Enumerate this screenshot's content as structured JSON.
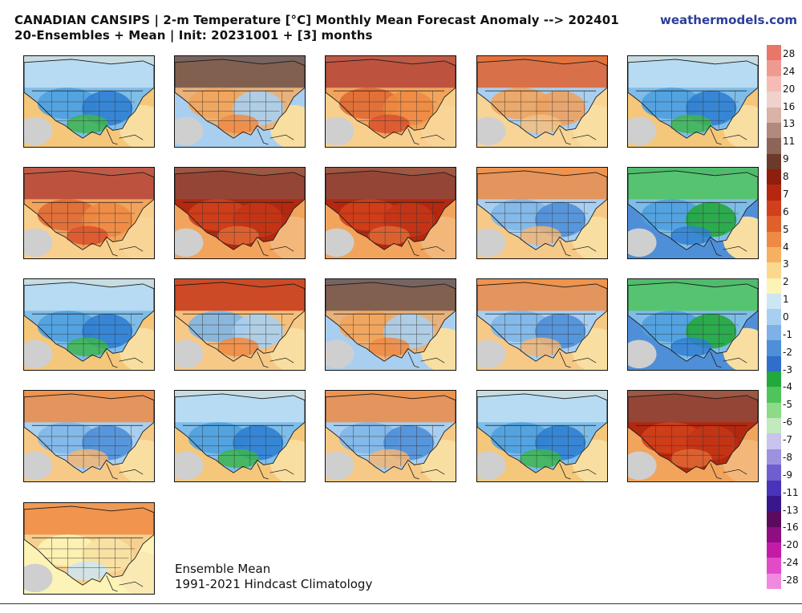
{
  "header": {
    "title_line1": "CANADIAN CANSIPS | 2-m Temperature [°C] Monthly Mean Forecast Anomaly --> 202401",
    "title_line2": "20-Ensembles + Mean | Init: 20231001 + [3] months",
    "brand": "weathermodels.com"
  },
  "footnote": {
    "line1": "Ensemble Mean",
    "line2": "1991-2021 Hindcast Climatology"
  },
  "panels": [
    {
      "id": "member-1",
      "anomaly": "cold"
    },
    {
      "id": "member-2",
      "anomaly": "warm-east"
    },
    {
      "id": "member-3",
      "anomaly": "warm"
    },
    {
      "id": "member-4",
      "anomaly": "mild-warm"
    },
    {
      "id": "member-5",
      "anomaly": "cold"
    },
    {
      "id": "member-6",
      "anomaly": "warm"
    },
    {
      "id": "member-7",
      "anomaly": "very-warm"
    },
    {
      "id": "member-8",
      "anomaly": "very-warm"
    },
    {
      "id": "member-9",
      "anomaly": "cool"
    },
    {
      "id": "member-10",
      "anomaly": "cold-east"
    },
    {
      "id": "member-11",
      "anomaly": "cold"
    },
    {
      "id": "member-12",
      "anomaly": "warm-north"
    },
    {
      "id": "member-13",
      "anomaly": "warm-east"
    },
    {
      "id": "member-14",
      "anomaly": "cool"
    },
    {
      "id": "member-15",
      "anomaly": "cold-east"
    },
    {
      "id": "member-16",
      "anomaly": "cool"
    },
    {
      "id": "member-17",
      "anomaly": "cold"
    },
    {
      "id": "member-18",
      "anomaly": "cool"
    },
    {
      "id": "member-19",
      "anomaly": "cold"
    },
    {
      "id": "member-20",
      "anomaly": "very-warm"
    },
    {
      "id": "ensemble-mean",
      "anomaly": "neutral"
    }
  ],
  "colorbar": {
    "labels": [
      "28",
      "24",
      "20",
      "16",
      "13",
      "11",
      "9",
      "8",
      "7",
      "6",
      "5",
      "4",
      "3",
      "2",
      "1",
      "0",
      "-1",
      "-2",
      "-3",
      "-4",
      "-5",
      "-6",
      "-7",
      "-8",
      "-9",
      "-11",
      "-13",
      "-16",
      "-20",
      "-24",
      "-28"
    ],
    "colors": [
      "#e8776a",
      "#ef9a90",
      "#f4bcb4",
      "#efd2cc",
      "#d9b3a6",
      "#b08a7c",
      "#8c6558",
      "#6b3a2a",
      "#8e1e0e",
      "#b4280f",
      "#d13f1b",
      "#e0602b",
      "#ee8a43",
      "#f6b062",
      "#fbd88e",
      "#fdf3b6",
      "#cde6f4",
      "#a9cff0",
      "#7fb1e6",
      "#4f8fd8",
      "#2f6fcb",
      "#22a83c",
      "#4fc45a",
      "#8ddb86",
      "#c3e9bf",
      "#c9c3ee",
      "#9d92e0",
      "#6f5ed0",
      "#4a33b8",
      "#3a168c",
      "#5b0a5e",
      "#8e0e82",
      "#c41aa8",
      "#e24bc8",
      "#f08ae0"
    ]
  }
}
